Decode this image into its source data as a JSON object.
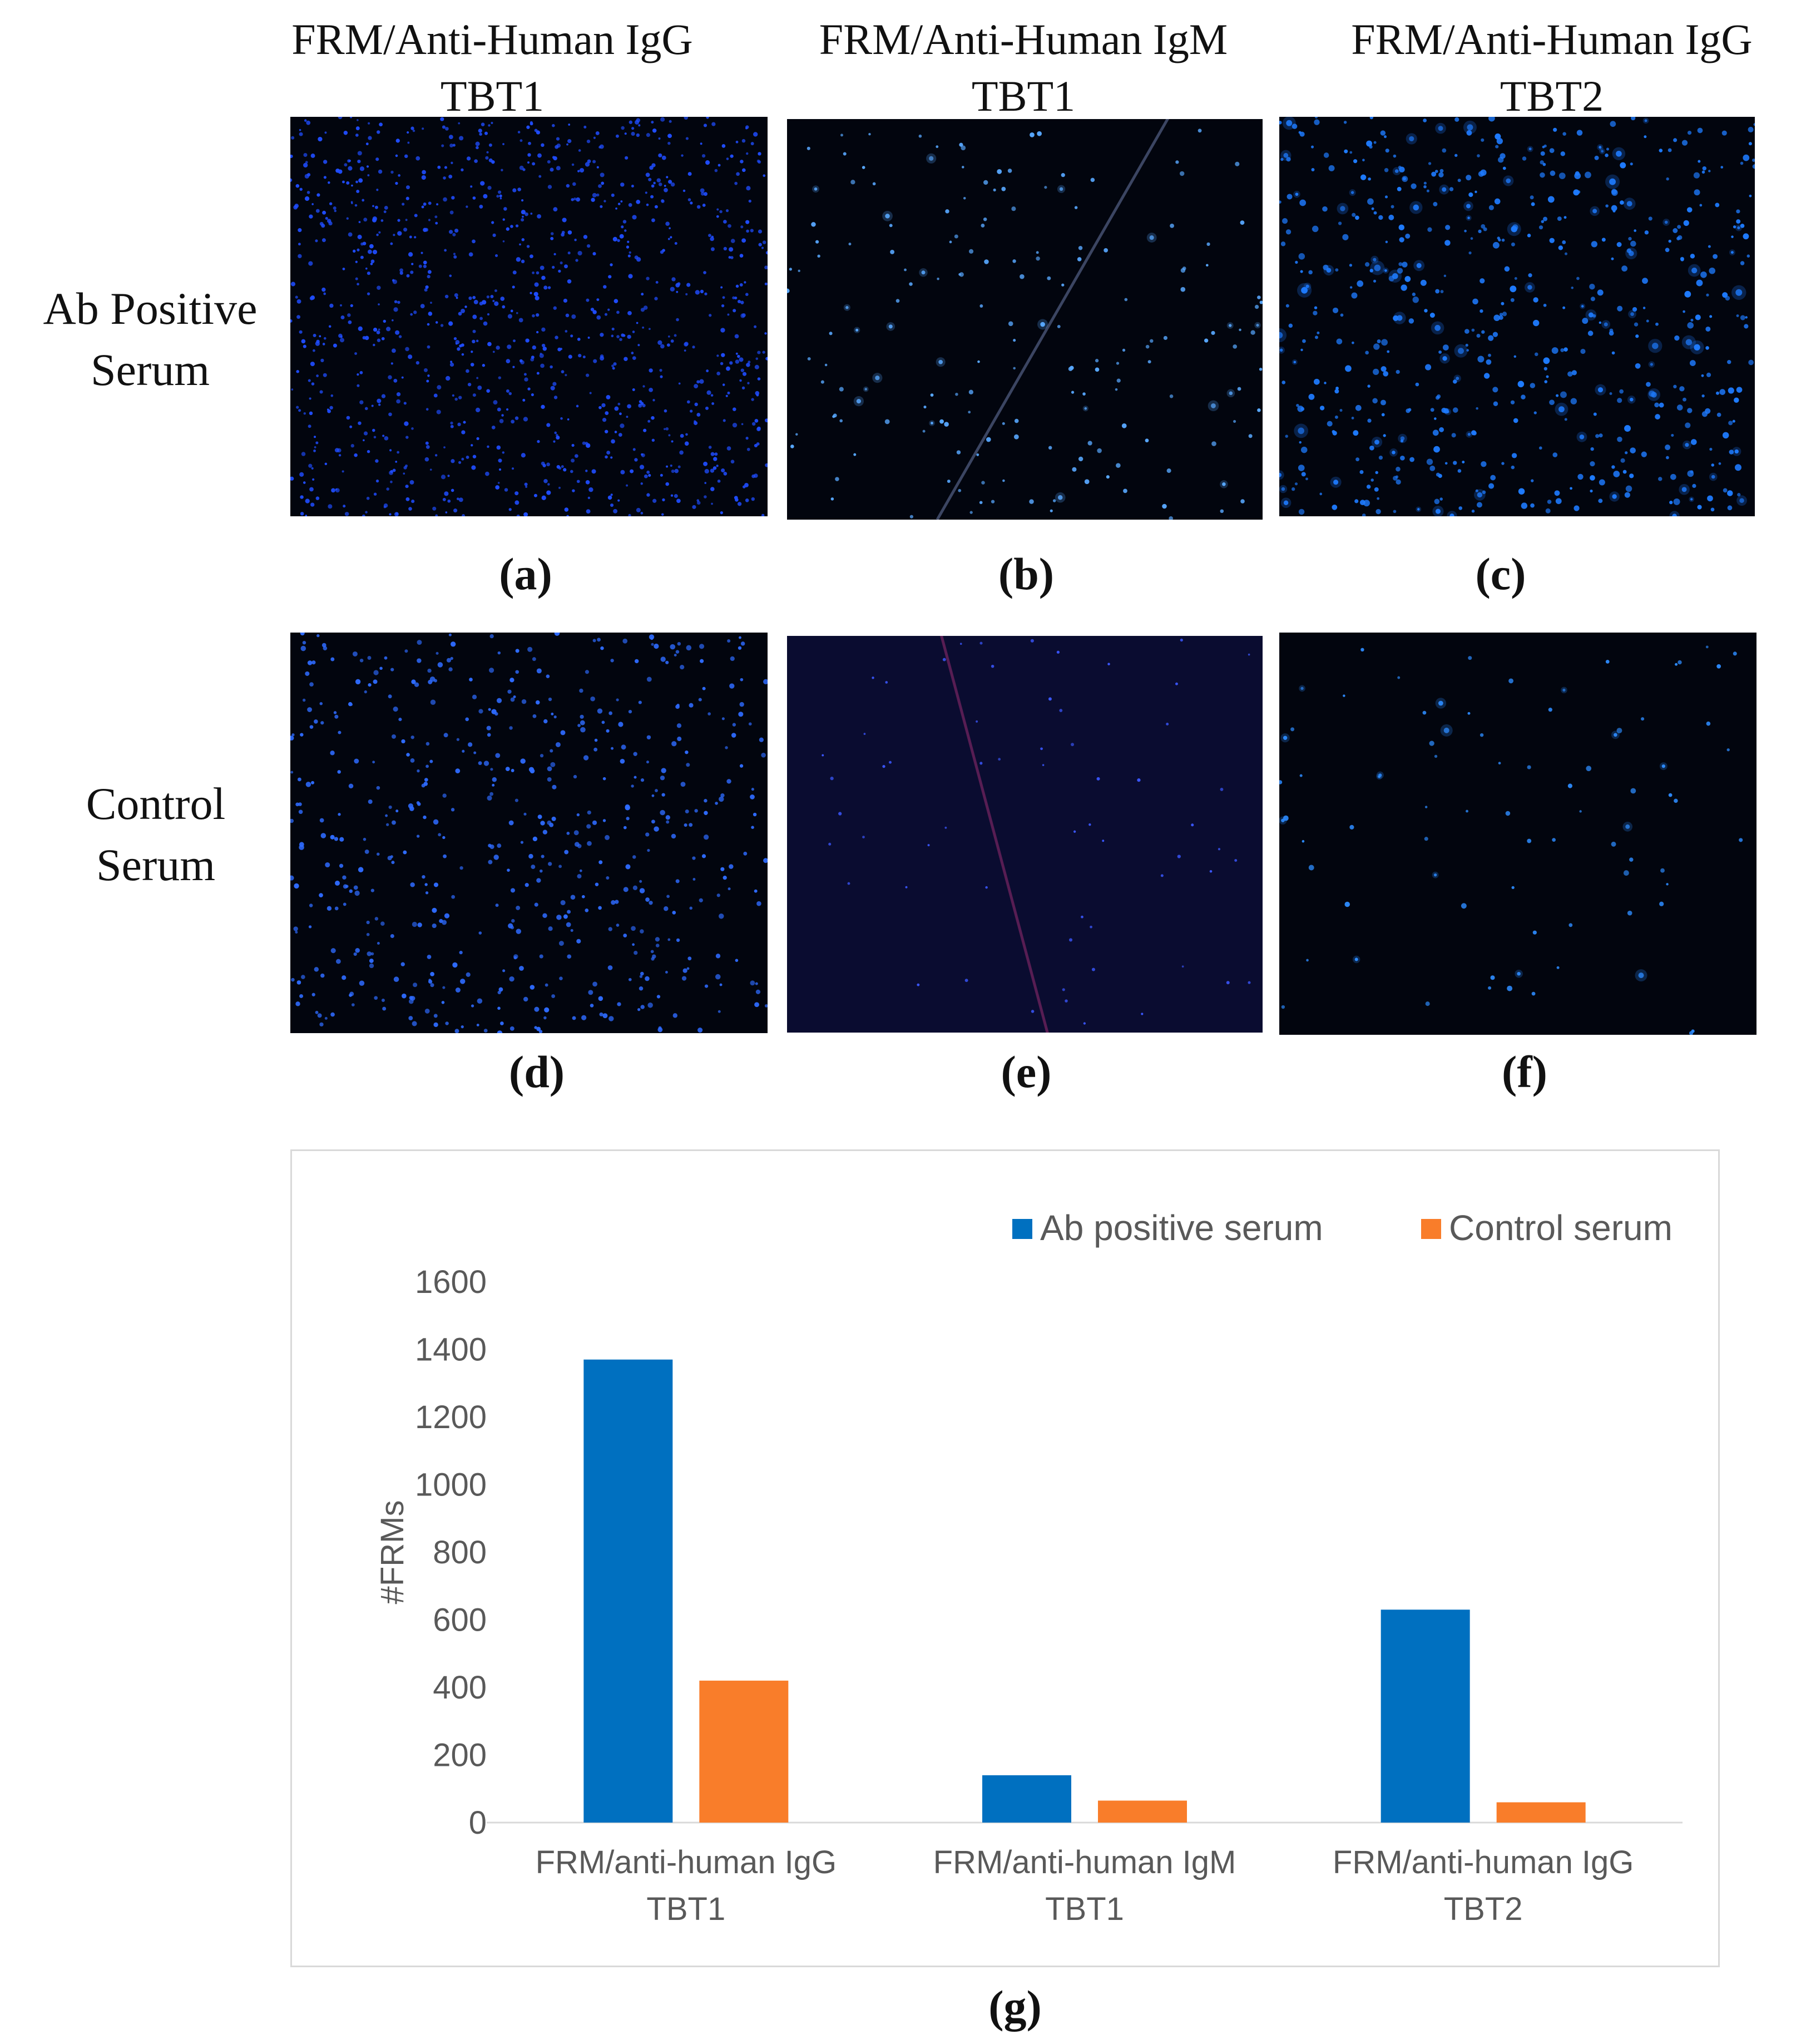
{
  "column_titles": [
    {
      "line1": "FRM/Anti-Human IgG",
      "line2": "TBT1"
    },
    {
      "line1": "FRM/Anti-Human IgM",
      "line2": "TBT1"
    },
    {
      "line1": "FRM/Anti-Human IgG",
      "line2": "TBT2"
    }
  ],
  "row_labels": [
    {
      "line1": "Ab Positive",
      "line2": "Serum"
    },
    {
      "line1": "Control",
      "line2": "Serum"
    }
  ],
  "panel_labels": [
    "(a)",
    "(b)",
    "(c)",
    "(d)",
    "(e)",
    "(f)",
    "(g)"
  ],
  "colors": {
    "ab_positive": "#0070C0",
    "control": "#F97D2A",
    "micro_background": "#02050e",
    "micro_dot": "#2f6bff"
  },
  "chart_data": {
    "type": "bar",
    "categories": [
      [
        "FRM/anti-human IgG",
        "TBT1"
      ],
      [
        "FRM/anti-human IgM",
        "TBT1"
      ],
      [
        "FRM/anti-human IgG",
        "TBT2"
      ]
    ],
    "series": [
      {
        "name": "Ab positive serum",
        "values": [
          1370,
          140,
          630
        ]
      },
      {
        "name": "Control serum",
        "values": [
          420,
          65,
          60
        ]
      }
    ],
    "ylabel": "#FRMs",
    "ylim": [
      0,
      1600
    ],
    "yticks": [
      0,
      200,
      400,
      600,
      800,
      1000,
      1200,
      1400,
      1600
    ],
    "grid": false,
    "legend": "top-right"
  }
}
